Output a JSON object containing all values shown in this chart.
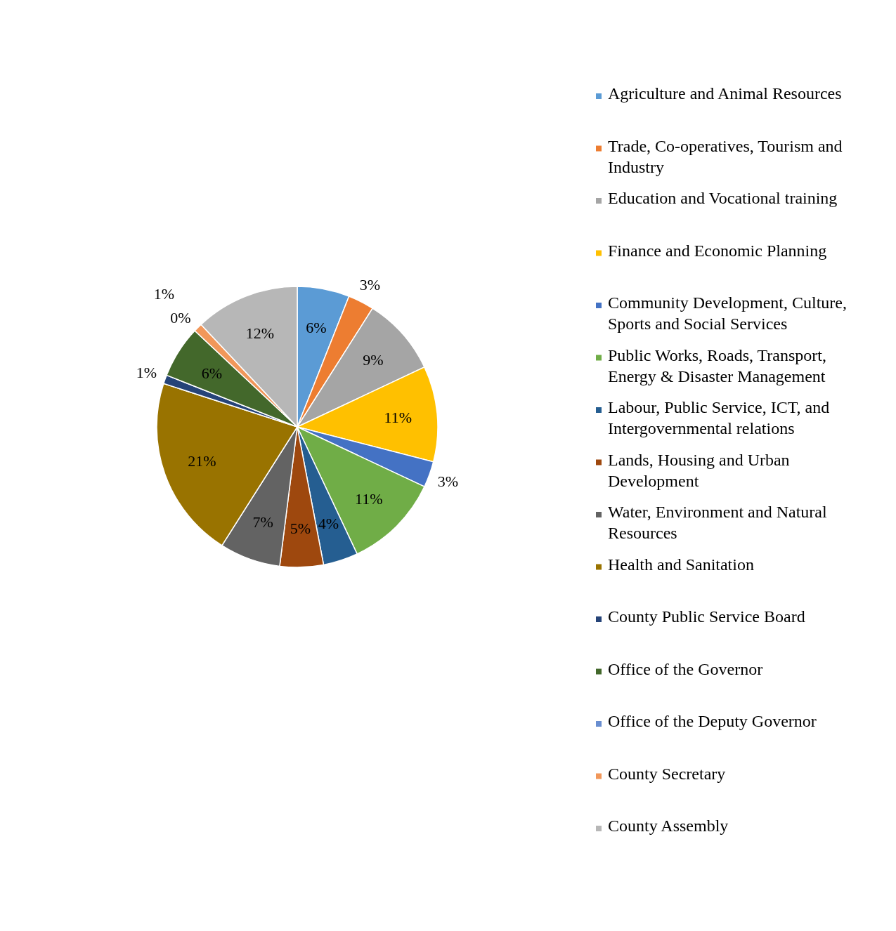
{
  "chart_data": {
    "type": "pie",
    "categories": [
      "Agriculture and Animal Resources",
      "Trade, Co-operatives, Tourism and Industry",
      "Education and Vocational training",
      "Finance and Economic Planning",
      "Community Development, Culture, Sports and Social Services",
      "Public Works, Roads, Transport, Energy & Disaster Management",
      "Labour, Public Service, ICT, and Intergovernmental relations",
      "Lands, Housing and Urban Development",
      "Water, Environment and Natural Resources",
      "Health and Sanitation",
      "County Public Service Board",
      "Office of the Governor",
      "Office of the Deputy Governor",
      "County Secretary",
      "County Assembly"
    ],
    "values": [
      6,
      3,
      9,
      11,
      3,
      11,
      4,
      5,
      7,
      21,
      1,
      6,
      0,
      1,
      12
    ],
    "value_labels": [
      "6%",
      "3%",
      "9%",
      "11%",
      "3%",
      "11%",
      "4%",
      "5%",
      "7%",
      "21%",
      "1%",
      "6%",
      "0%",
      "1%",
      "12%"
    ],
    "colors": [
      "#5b9bd5",
      "#ed7d31",
      "#a5a5a5",
      "#ffc000",
      "#4472c4",
      "#70ad47",
      "#255e91",
      "#9e480e",
      "#636363",
      "#997300",
      "#264478",
      "#43682b",
      "#698ed0",
      "#f1975a",
      "#b7b7b7"
    ],
    "legend": "right"
  }
}
